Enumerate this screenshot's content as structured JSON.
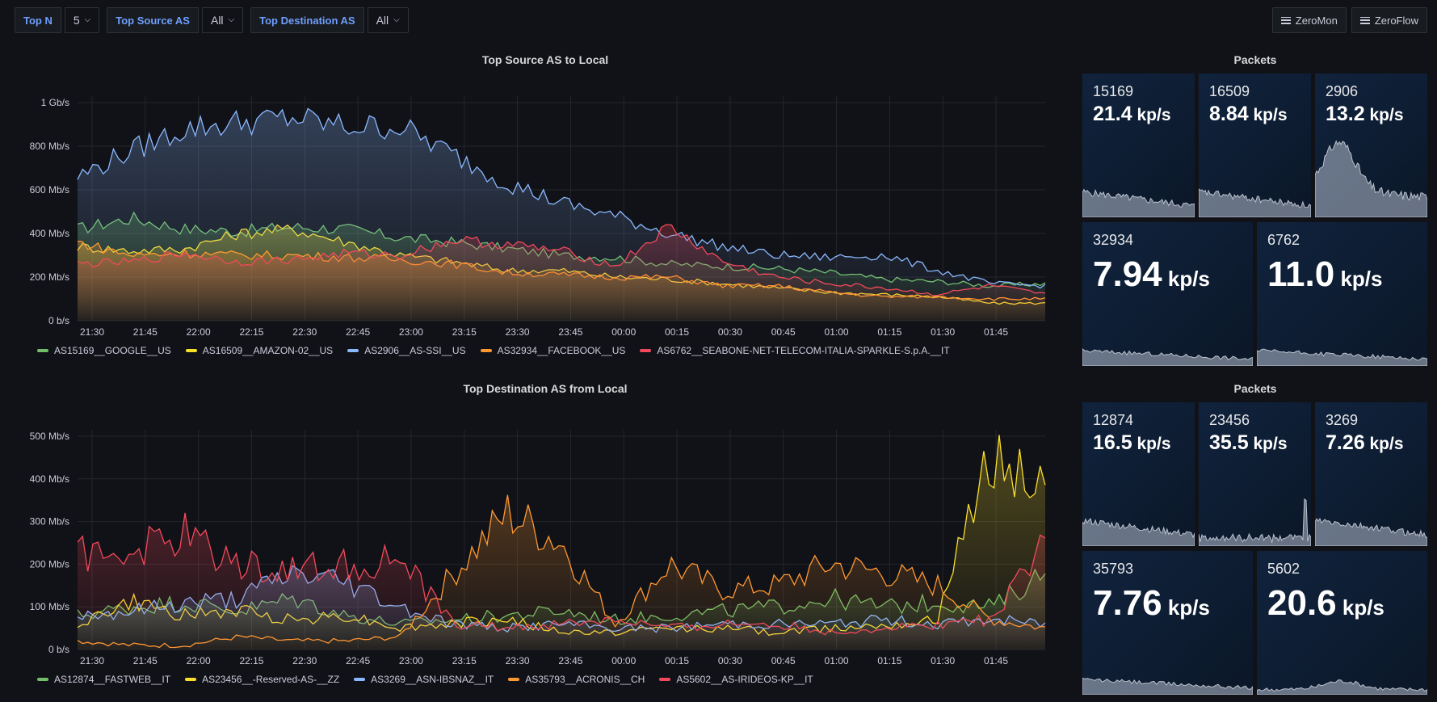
{
  "variables": [
    {
      "label": "Top N",
      "value": "5"
    },
    {
      "label": "Top Source AS",
      "value": "All"
    },
    {
      "label": "Top Destination AS",
      "value": "All"
    }
  ],
  "links": [
    "ZeroMon",
    "ZeroFlow"
  ],
  "src_chart": {
    "title": "Top Source AS to Local",
    "y_ticks": [
      "1 Gb/s",
      "800 Mb/s",
      "600 Mb/s",
      "400 Mb/s",
      "200 Mb/s",
      "0 b/s"
    ],
    "x_ticks": [
      "21:30",
      "21:45",
      "22:00",
      "22:15",
      "22:30",
      "22:45",
      "23:00",
      "23:15",
      "23:30",
      "23:45",
      "00:00",
      "00:15",
      "00:30",
      "00:45",
      "01:00",
      "01:15",
      "01:30",
      "01:45"
    ],
    "legend": [
      "AS15169__GOOGLE__US",
      "AS16509__AMAZON-02__US",
      "AS2906__AS-SSI__US",
      "AS32934__FACEBOOK__US",
      "AS6762__SEABONE-NET-TELECOM-ITALIA-SPARKLE-S.p.A.__IT"
    ]
  },
  "dst_chart": {
    "title": "Top Destination AS from Local",
    "y_ticks": [
      "500 Mb/s",
      "400 Mb/s",
      "300 Mb/s",
      "200 Mb/s",
      "100 Mb/s",
      "0 b/s"
    ],
    "x_ticks": [
      "21:30",
      "21:45",
      "22:00",
      "22:15",
      "22:30",
      "22:45",
      "23:00",
      "23:15",
      "23:30",
      "23:45",
      "00:00",
      "00:15",
      "00:30",
      "00:45",
      "01:00",
      "01:15",
      "01:30",
      "01:45"
    ],
    "legend": [
      "AS12874__FASTWEB__IT",
      "AS23456__-Reserved-AS-__ZZ",
      "AS3269__ASN-IBSNAZ__IT",
      "AS35793__ACRONIS__CH",
      "AS5602__AS-IRIDEOS-KP__IT"
    ]
  },
  "colors": {
    "green": "#73bf69",
    "yellow": "#fade2a",
    "blue": "#8ab8ff",
    "orange": "#ff9830",
    "red": "#f2495c"
  },
  "chart_data": [
    {
      "type": "line",
      "title": "Top Source AS to Local",
      "ylabel": "b/s",
      "ylim": [
        0,
        1000
      ],
      "y_unit": "Mb/s",
      "x": [
        "21:30",
        "21:45",
        "22:00",
        "22:15",
        "22:30",
        "22:45",
        "23:00",
        "23:15",
        "23:30",
        "23:45",
        "00:00",
        "00:15",
        "00:30",
        "00:45",
        "01:00",
        "01:15",
        "01:30",
        "01:45",
        "01:55"
      ],
      "series": [
        {
          "name": "AS15169__GOOGLE__US",
          "values": [
            420,
            470,
            420,
            410,
            430,
            420,
            380,
            360,
            330,
            300,
            290,
            260,
            250,
            240,
            220,
            190,
            180,
            160,
            170
          ]
        },
        {
          "name": "AS16509__AMAZON-02__US",
          "values": [
            340,
            320,
            330,
            400,
            420,
            360,
            300,
            270,
            230,
            230,
            200,
            190,
            170,
            150,
            130,
            120,
            110,
            80,
            80
          ]
        },
        {
          "name": "AS2906__AS-SSI__US",
          "values": [
            660,
            780,
            880,
            910,
            930,
            890,
            890,
            760,
            630,
            540,
            480,
            400,
            340,
            300,
            290,
            300,
            230,
            170,
            160
          ]
        },
        {
          "name": "AS32934__FACEBOOK__US",
          "values": [
            360,
            300,
            310,
            300,
            300,
            290,
            280,
            260,
            220,
            210,
            200,
            200,
            160,
            160,
            130,
            110,
            110,
            100,
            100
          ]
        },
        {
          "name": "AS6762__SEABONE-NET-TELECOM-ITALIA-SPARKLE-S.p.A.__IT",
          "values": [
            260,
            270,
            310,
            270,
            280,
            310,
            300,
            370,
            350,
            320,
            250,
            430,
            270,
            200,
            170,
            150,
            120,
            160,
            120
          ]
        }
      ]
    },
    {
      "type": "line",
      "title": "Top Destination AS from Local",
      "ylabel": "b/s",
      "ylim": [
        0,
        500
      ],
      "y_unit": "Mb/s",
      "x": [
        "21:30",
        "21:45",
        "22:00",
        "22:15",
        "22:30",
        "22:45",
        "23:00",
        "23:15",
        "23:30",
        "23:45",
        "00:00",
        "00:15",
        "00:30",
        "00:45",
        "01:00",
        "01:15",
        "01:30",
        "01:45",
        "01:55"
      ],
      "series": [
        {
          "name": "AS12874__FASTWEB__IT",
          "values": [
            80,
            100,
            110,
            90,
            120,
            80,
            60,
            70,
            80,
            90,
            70,
            80,
            90,
            100,
            120,
            100,
            110,
            100,
            180
          ]
        },
        {
          "name": "AS23456__-Reserved-AS-__ZZ",
          "values": [
            60,
            110,
            80,
            90,
            70,
            80,
            50,
            60,
            70,
            40,
            40,
            50,
            50,
            40,
            50,
            60,
            70,
            470,
            380
          ]
        },
        {
          "name": "AS3269__ASN-IBSNAZ__IT",
          "values": [
            80,
            90,
            110,
            120,
            180,
            160,
            100,
            60,
            50,
            60,
            50,
            50,
            60,
            60,
            60,
            70,
            60,
            70,
            60
          ]
        },
        {
          "name": "AS35793__ACRONIS__CH",
          "values": [
            20,
            10,
            10,
            30,
            20,
            20,
            30,
            180,
            320,
            250,
            60,
            200,
            140,
            150,
            200,
            180,
            150,
            70,
            50
          ]
        },
        {
          "name": "AS5602__AS-IRIDEOS-KP__IT",
          "values": [
            220,
            230,
            270,
            200,
            190,
            200,
            210,
            60,
            50,
            60,
            70,
            50,
            60,
            60,
            40,
            50,
            60,
            70,
            240
          ]
        }
      ]
    }
  ],
  "stats_top": {
    "title": "Packets",
    "items": [
      {
        "name": "15169",
        "value": "21.4",
        "unit": "kp/s"
      },
      {
        "name": "16509",
        "value": "8.84",
        "unit": "kp/s"
      },
      {
        "name": "2906",
        "value": "13.2",
        "unit": "kp/s"
      },
      {
        "name": "32934",
        "value": "7.94",
        "unit": "kp/s"
      },
      {
        "name": "6762",
        "value": "11.0",
        "unit": "kp/s"
      }
    ]
  },
  "stats_bottom": {
    "title": "Packets",
    "items": [
      {
        "name": "12874",
        "value": "16.5",
        "unit": "kp/s"
      },
      {
        "name": "23456",
        "value": "35.5",
        "unit": "kp/s"
      },
      {
        "name": "3269",
        "value": "7.26",
        "unit": "kp/s"
      },
      {
        "name": "35793",
        "value": "7.76",
        "unit": "kp/s"
      },
      {
        "name": "5602",
        "value": "20.6",
        "unit": "kp/s"
      }
    ]
  }
}
